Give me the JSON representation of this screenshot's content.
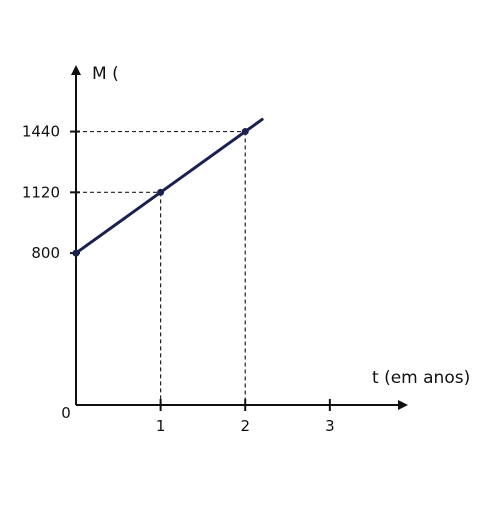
{
  "chart_data": {
    "type": "line",
    "title": "",
    "xlabel": "t (em anos)",
    "ylabel": "M (",
    "origin_label": "0",
    "x_ticks": [
      1,
      2,
      3
    ],
    "x_tick_labels": [
      "1",
      "2",
      "3"
    ],
    "y_ticks": [
      800,
      1120,
      1440
    ],
    "y_tick_labels": [
      "800",
      "1120",
      "1440"
    ],
    "xlim": [
      0,
      3.9
    ],
    "ylim": [
      0,
      1780
    ],
    "line_extends_to_x": 2.2,
    "grid": false,
    "guide_lines": "dashed",
    "line_color": "#1a2150",
    "series": [
      {
        "x": [
          0,
          1,
          2
        ],
        "y": [
          800,
          1120,
          1440
        ]
      }
    ]
  }
}
